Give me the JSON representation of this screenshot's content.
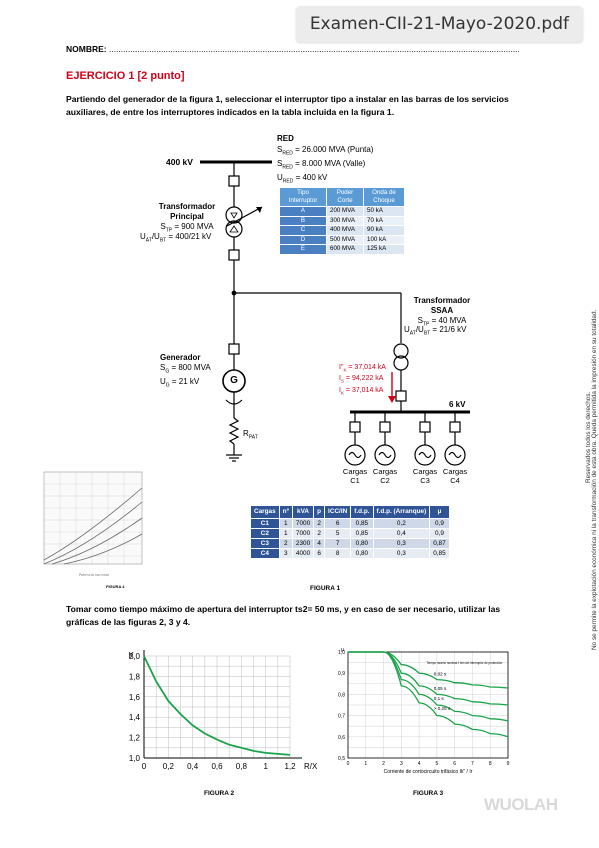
{
  "header": {
    "filename": "Examen-CII-21-Mayo-2020.pdf"
  },
  "nombre": {
    "label": "NOMBRE:",
    "dots": "........................................................................................................................................................................................................."
  },
  "ejercicio": {
    "title": "EJERCICIO 1 [2 punto]"
  },
  "paragraph1": {
    "line1": "Partiendo del generador de la figura 1, seleccionar el interruptor tipo a instalar en las barras de los servicios",
    "line2": "auxiliares, de entre los interruptores indicados en la tabla incluida en la figura 1."
  },
  "diagram": {
    "red": {
      "title": "RED",
      "s_punta": "S",
      "s_punta_sub": "RED",
      "s_punta_val": " = 26.000 MVA (Punta)",
      "s_valle": "S",
      "s_valle_sub": "RED",
      "s_valle_val": " = 8.000 MVA (Valle)",
      "u": "U",
      "u_sub": "RED",
      "u_val": " = 400 kV"
    },
    "bus_400": "400 kV",
    "tp": {
      "l1": "Transformador",
      "l2": "Principal",
      "s": "S",
      "s_sub": "TP",
      "s_val": " = 900 MVA",
      "u": "U",
      "u_sub": "AT",
      "u_mid": "/U",
      "u_sub2": "BT",
      "u_val": " = 400/21 kV"
    },
    "ssaa": {
      "l1": "Transformador",
      "l2": "SSAA",
      "s": "S",
      "s_sub": "TP",
      "s_val": " = 40 MVA",
      "u": "U",
      "u_sub": "AT",
      "u_mid": "/U",
      "u_sub2": "BT",
      "u_val": " = 21/6 kV"
    },
    "gen": {
      "l1": "Generador",
      "s": "S",
      "s_sub": "G",
      "s_val": " = 800 MVA",
      "u": "U",
      "u_sub": "G",
      "u_val": " = 21 kV",
      "symbol": "G"
    },
    "rpat": {
      "r": "R",
      "sub": "PAT"
    },
    "faults": {
      "ik2": "I\"",
      "ik2_sub": "K",
      "ik2_val": " = 37,014 kA",
      "is": "I",
      "is_sub": "S",
      "is_val": " = 94,222 kA",
      "ik": "I",
      "ik_sub": "K",
      "ik_val": " = 37,014 kA"
    },
    "bus_6": "6 kV",
    "loads": [
      {
        "l1": "Cargas",
        "l2": "C1"
      },
      {
        "l1": "Cargas",
        "l2": "C2"
      },
      {
        "l1": "Cargas",
        "l2": "C3"
      },
      {
        "l1": "Cargas",
        "l2": "C4"
      }
    ]
  },
  "tipo_table": {
    "headers": [
      "Tipo Interruptor",
      "Poder Corte",
      "Onda de Choque"
    ],
    "rows": [
      [
        "A",
        "200 MVA",
        "50 kA"
      ],
      [
        "B",
        "300 MVA",
        "70 kA"
      ],
      [
        "C",
        "400 MVA",
        "90 kA"
      ],
      [
        "D",
        "500 MVA",
        "100 kA"
      ],
      [
        "E",
        "600 MVA",
        "125 kA"
      ]
    ]
  },
  "cargas_table": {
    "headers": [
      "Cargas",
      "nº",
      "kVA",
      "p",
      "ICC/IN",
      "f.d.p.",
      "f.d.p. (Arranque)",
      "µ"
    ],
    "rows": [
      [
        "C1",
        "1",
        "7000",
        "2",
        "6",
        "0,85",
        "0,2",
        "0,9"
      ],
      [
        "C2",
        "1",
        "7000",
        "2",
        "5",
        "0,85",
        "0,4",
        "0,9"
      ],
      [
        "C3",
        "2",
        "2300",
        "4",
        "7",
        "0,80",
        "0,3",
        "0,87"
      ],
      [
        "C4",
        "3",
        "4000",
        "6",
        "8",
        "0,80",
        "0,3",
        "0,85"
      ]
    ]
  },
  "figure1_label": "FIGURA 1",
  "paragraph2": {
    "line1": "Tomar como tiempo máximo de apertura del interruptor ts2= 50 ms, y en caso de ser necesario, utilizar las",
    "line2": "gráficas de las figuras 2, 3 y 4."
  },
  "figure2_label": "FIGURA 2",
  "figure3_label": "FIGURA 3",
  "figure4_label": "FIGURA 4",
  "chart_data": [
    {
      "type": "line",
      "title": "",
      "xlabel": "R/X",
      "ylabel": "K",
      "xlim": [
        0,
        1.2
      ],
      "ylim": [
        1.0,
        2.0
      ],
      "x_ticks": [
        "0",
        "0,2",
        "0,4",
        "0,6",
        "0,8",
        "1",
        "1,2"
      ],
      "y_ticks": [
        "1,0",
        "1,2",
        "1,4",
        "1,6",
        "1,8",
        "2,0"
      ],
      "grid": true,
      "color": "#1aa34a",
      "series": [
        {
          "x": [
            0,
            0.1,
            0.2,
            0.3,
            0.4,
            0.5,
            0.6,
            0.7,
            0.8,
            0.9,
            1.0,
            1.1,
            1.2
          ],
          "y": [
            2.0,
            1.75,
            1.56,
            1.43,
            1.32,
            1.24,
            1.18,
            1.13,
            1.1,
            1.07,
            1.05,
            1.04,
            1.03
          ]
        }
      ]
    },
    {
      "type": "line",
      "title": "",
      "xlabel": "Corriente de cortocircuito trifásico Ik\" / Ir",
      "ylabel": "µ",
      "xlim": [
        0,
        9
      ],
      "ylim": [
        0.5,
        1.0
      ],
      "x_ticks": [
        "0",
        "1",
        "2",
        "3",
        "4",
        "5",
        "6",
        "7",
        "8",
        "9"
      ],
      "y_ticks": [
        "0,5",
        "0,6",
        "0,7",
        "0,8",
        "0,9",
        "1,0"
      ],
      "grid": true,
      "legend_title": "Tiempo muerto nominal t min del interruptor de protección",
      "color": "#1aa34a",
      "series": [
        {
          "name": "0,02 s",
          "x": [
            0,
            2,
            3,
            4,
            5,
            6,
            7,
            8,
            9
          ],
          "y": [
            1.0,
            1.0,
            0.94,
            0.9,
            0.87,
            0.855,
            0.845,
            0.835,
            0.83
          ]
        },
        {
          "name": "0,05 s",
          "x": [
            0,
            2,
            3,
            4,
            5,
            6,
            7,
            8,
            9
          ],
          "y": [
            1.0,
            1.0,
            0.9,
            0.84,
            0.8,
            0.78,
            0.765,
            0.755,
            0.75
          ]
        },
        {
          "name": "0,1 s",
          "x": [
            0,
            2,
            3,
            4,
            5,
            6,
            7,
            8,
            9
          ],
          "y": [
            1.0,
            1.0,
            0.87,
            0.8,
            0.75,
            0.72,
            0.7,
            0.685,
            0.675
          ]
        },
        {
          "name": "> 0,25 s",
          "x": [
            0,
            2,
            3,
            4,
            5,
            6,
            7,
            8,
            9
          ],
          "y": [
            1.0,
            1.0,
            0.84,
            0.76,
            0.7,
            0.66,
            0.635,
            0.615,
            0.6
          ]
        }
      ]
    }
  ],
  "side_notes": {
    "line1": "Reservados todos los derechos.",
    "line2": "No se permite la explotación económica ni la transformación de esta obra. Queda permitida la impresión en su totalidad."
  },
  "watermark": "WUOLAH"
}
